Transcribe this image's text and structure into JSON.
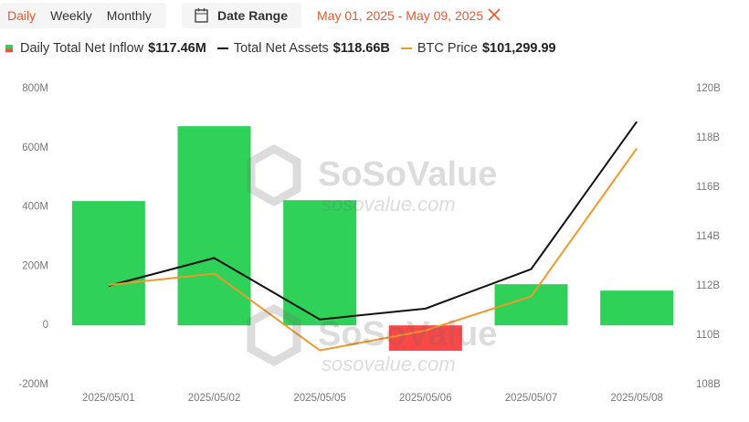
{
  "controls": {
    "tabs": [
      "Daily",
      "Weekly",
      "Monthly"
    ],
    "active_tab": 0,
    "date_range_button": "Date Range",
    "date_range": "May 01, 2025 - May 09, 2025"
  },
  "watermark": {
    "brand": "SoSoValue",
    "url": "sosovalue.com"
  },
  "chart_data": {
    "type": "bar",
    "categories": [
      "2025/05/01",
      "2025/05/02",
      "2025/05/05",
      "2025/05/06",
      "2025/05/07",
      "2025/05/08"
    ],
    "series": [
      {
        "name": "Daily Total Net Inflow",
        "type": "bar",
        "color": "#2fd158",
        "negative_color": "#ff4747",
        "values": [
          420,
          673,
          423,
          -86,
          139,
          117.46
        ],
        "legend_value": "$117.46M"
      },
      {
        "name": "Total Net Assets",
        "type": "line",
        "axis": "y2",
        "color": "#111111",
        "values": [
          112.0,
          113.13,
          110.64,
          111.08,
          112.68,
          118.66
        ],
        "legend_value": "$118.66B"
      },
      {
        "name": "BTC Price",
        "type": "line",
        "axis": "y3",
        "color": "#f0982a",
        "values": [
          96500,
          96900,
          94200,
          94900,
          96100,
          101299.99
        ],
        "legend_value": "$101,299.99"
      }
    ],
    "ylim": [
      -200,
      800
    ],
    "yticks": [
      {
        "value": -200,
        "label": "-200M"
      },
      {
        "value": 0,
        "label": "0"
      },
      {
        "value": 200,
        "label": "200M"
      },
      {
        "value": 400,
        "label": "400M"
      },
      {
        "value": 600,
        "label": "600M"
      },
      {
        "value": 800,
        "label": "800M"
      }
    ],
    "y2lim": [
      108,
      120
    ],
    "y2ticks": [
      {
        "value": 108,
        "label": "108B"
      },
      {
        "value": 110,
        "label": "110B"
      },
      {
        "value": 112,
        "label": "112B"
      },
      {
        "value": 114,
        "label": "114B"
      },
      {
        "value": 116,
        "label": "116B"
      },
      {
        "value": 118,
        "label": "118B"
      },
      {
        "value": 120,
        "label": "120B"
      }
    ],
    "y3lim": [
      93000,
      103400
    ],
    "grid": false
  }
}
